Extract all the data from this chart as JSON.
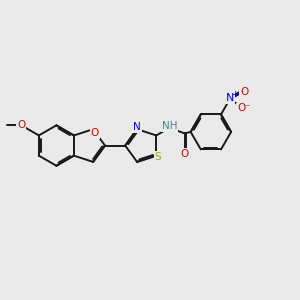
{
  "bg_color": "#eaeaea",
  "bond_color": "#1a1a1a",
  "bond_width": 1.4,
  "dbo": 0.055,
  "atom_colors": {
    "O": "#dd0000",
    "N": "#0000ee",
    "S": "#aaaa00",
    "H": "#448888",
    "C": "#1a1a1a"
  },
  "fs": 7.5,
  "bl": 0.68
}
